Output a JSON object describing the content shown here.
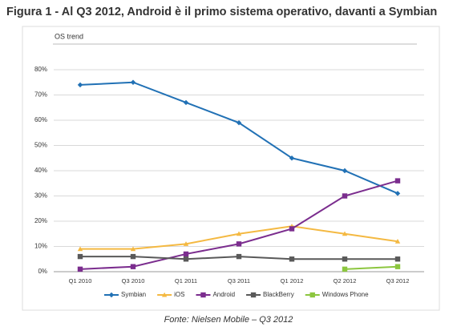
{
  "chart_data": {
    "type": "line",
    "title": "Figura 1 - Al Q3 2012, Android è il primo sistema operativo, davanti a Symbian",
    "subtitle": "OS trend",
    "source": "Fonte: Nielsen Mobile – Q3 2012",
    "categories": [
      "Q1 2010",
      "Q3 2010",
      "Q1 2011",
      "Q3 2011",
      "Q1 2012",
      "Q2 2012",
      "Q3 2012"
    ],
    "series": [
      {
        "name": "Symbian",
        "color": "#2171b5",
        "marker": "diamond",
        "values": [
          74,
          75,
          67,
          59,
          45,
          40,
          31
        ]
      },
      {
        "name": "iOS",
        "color": "#f4b942",
        "marker": "triangle",
        "values": [
          9,
          9,
          11,
          15,
          18,
          15,
          12
        ]
      },
      {
        "name": "Android",
        "color": "#7b2d8e",
        "marker": "square",
        "values": [
          1,
          2,
          7,
          11,
          17,
          30,
          36
        ]
      },
      {
        "name": "BlackBerry",
        "color": "#595959",
        "marker": "square",
        "values": [
          6,
          6,
          5,
          6,
          5,
          5,
          5
        ]
      },
      {
        "name": "Windows Phone",
        "color": "#8cc63f",
        "marker": "square",
        "values": [
          null,
          null,
          null,
          null,
          null,
          1,
          2
        ]
      }
    ],
    "ylim": [
      0,
      80
    ],
    "yticks": [
      {
        "value": 0,
        "label": "0%"
      },
      {
        "value": 10,
        "label": "10%"
      },
      {
        "value": 20,
        "label": "20%"
      },
      {
        "value": 30,
        "label": "30%"
      },
      {
        "value": 40,
        "label": "40%"
      },
      {
        "value": 50,
        "label": "50%"
      },
      {
        "value": 60,
        "label": "60%"
      },
      {
        "value": 70,
        "label": "70%"
      },
      {
        "value": 80,
        "label": "80%"
      }
    ],
    "grid": true,
    "legend": "bottom"
  }
}
